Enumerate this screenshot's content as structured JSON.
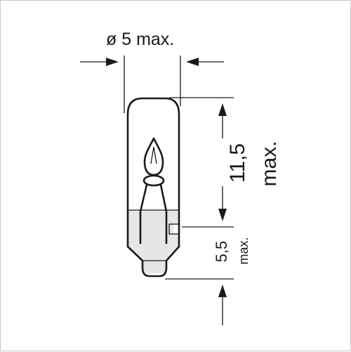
{
  "drawing": {
    "diameter_label": "ø 5 max.",
    "total_length_value": "11,5",
    "total_length_suffix": "max.",
    "base_length_value": "5,5",
    "base_length_suffix": "max.",
    "line_color": "#1a1a1a",
    "border_color": "#c8c8c8",
    "base_shade_color": "#e6e6e6"
  }
}
